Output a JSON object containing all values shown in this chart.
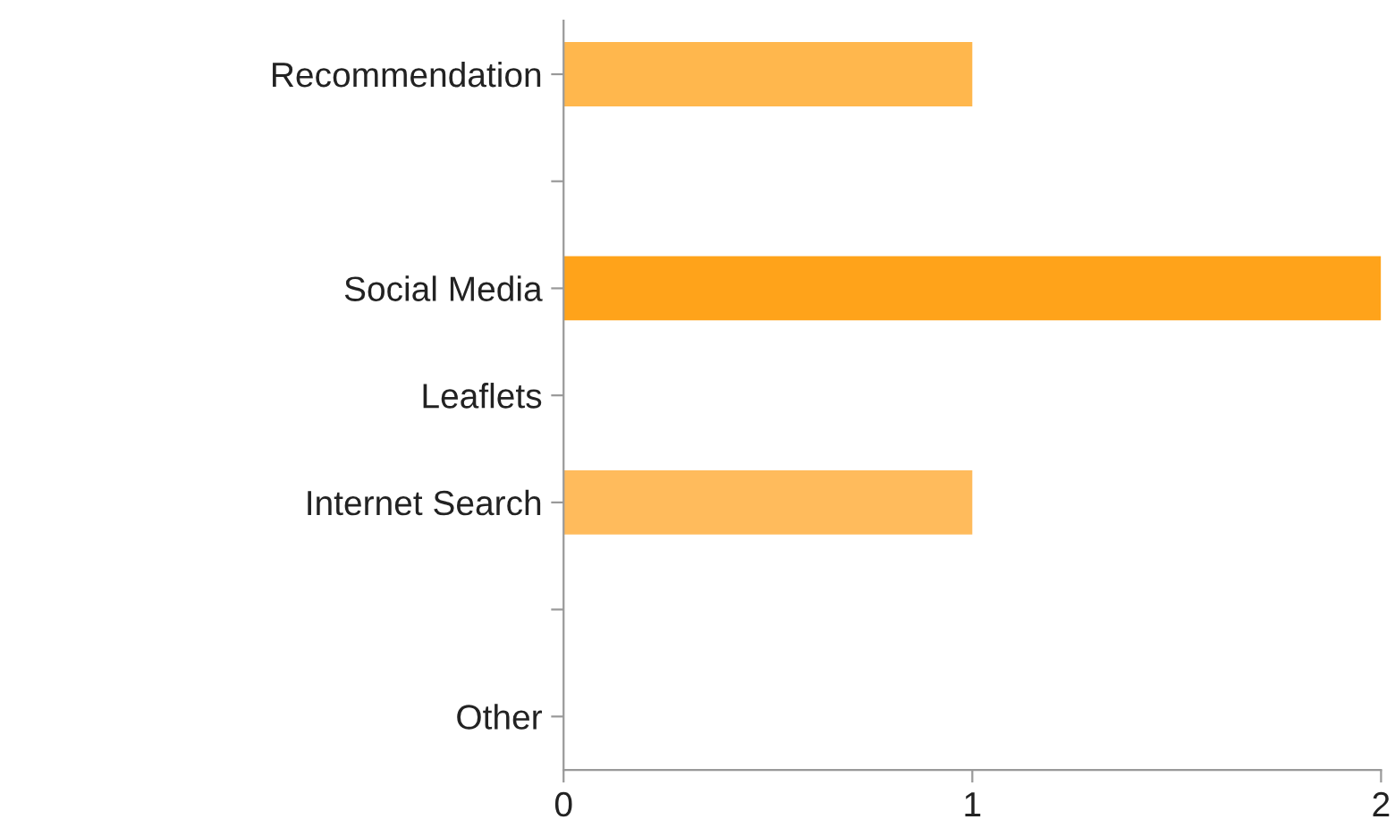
{
  "chart_data": {
    "type": "bar",
    "orientation": "horizontal",
    "categories": [
      "Recommendation",
      null,
      "Social Media",
      "Leaflets",
      "Internet Search",
      null,
      "Other"
    ],
    "values": [
      1,
      0,
      2,
      0,
      1,
      0,
      0
    ],
    "colors": [
      "#ffb74d",
      "#ffb74d",
      "#ffa31a",
      "#ffb74d",
      "#ffbb5c",
      "#ffb74d",
      "#ffb74d"
    ],
    "xlim": [
      0,
      2
    ],
    "xticks": [
      0,
      1,
      2
    ],
    "grid": false
  }
}
